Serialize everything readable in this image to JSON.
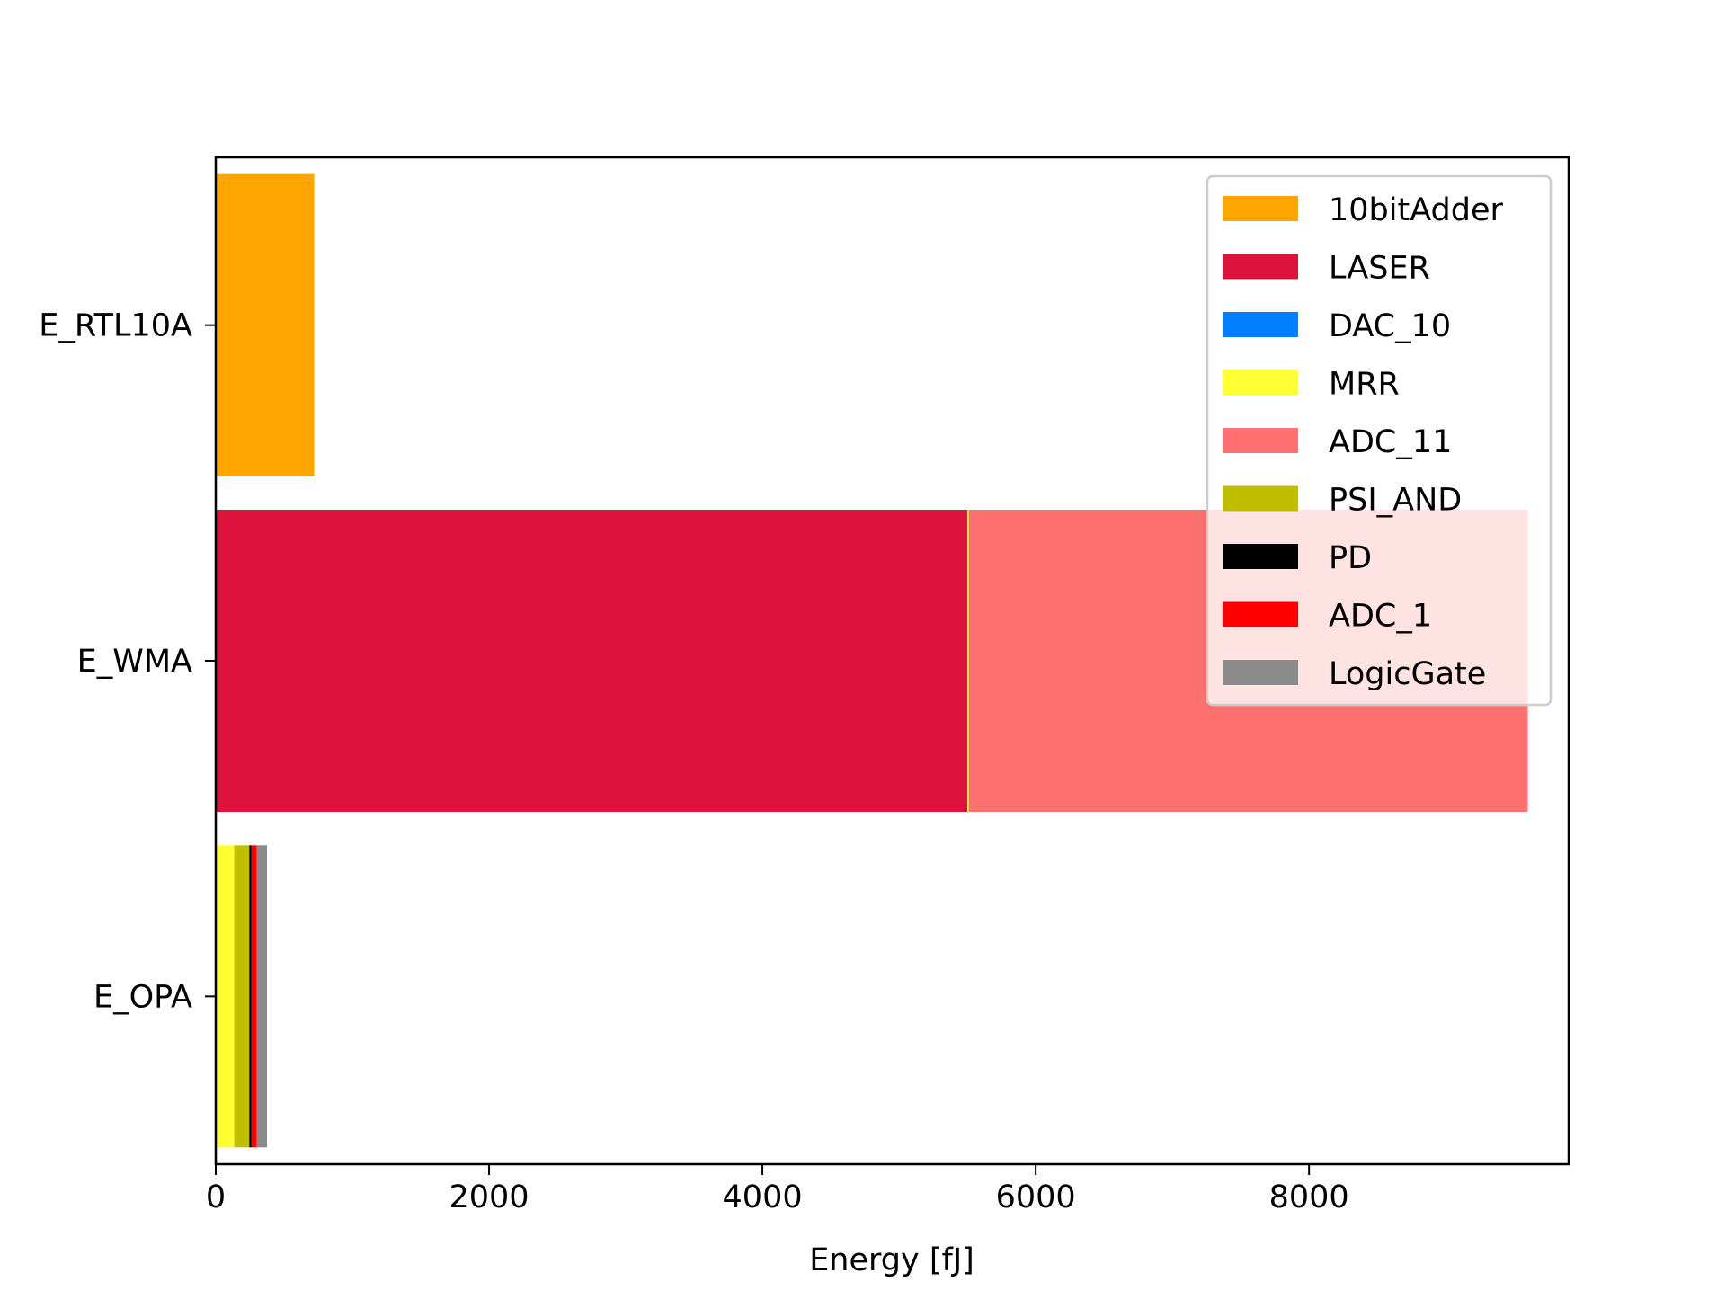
{
  "chart_data": {
    "type": "bar",
    "orientation": "horizontal",
    "stacked": true,
    "title": "",
    "xlabel": "Energy [fJ]",
    "ylabel": "",
    "xlim": [
      0,
      9900
    ],
    "xticks": [
      0,
      2000,
      4000,
      6000,
      8000
    ],
    "xtick_labels": [
      "0",
      "2000",
      "4000",
      "6000",
      "8000"
    ],
    "categories": [
      "E_RTL10A",
      "E_WMA",
      "E_OPA"
    ],
    "grid": false,
    "legend_position": "top-right",
    "series": [
      {
        "name": "10bitAdder",
        "color": "#ffa500",
        "values": [
          720,
          0,
          0
        ]
      },
      {
        "name": "LASER",
        "color": "#dc143c",
        "values": [
          0,
          5500,
          0
        ]
      },
      {
        "name": "DAC_10",
        "color": "#0080ff",
        "values": [
          0,
          0,
          0
        ]
      },
      {
        "name": "MRR",
        "color": "#ffff33",
        "values": [
          0,
          10,
          135
        ]
      },
      {
        "name": "ADC_11",
        "color": "#ff7070",
        "values": [
          0,
          4090,
          0
        ]
      },
      {
        "name": "PSI_AND",
        "color": "#bfbf00",
        "values": [
          0,
          0,
          110
        ]
      },
      {
        "name": "PD",
        "color": "#000000",
        "values": [
          0,
          0,
          15
        ]
      },
      {
        "name": "ADC_1",
        "color": "#ff0000",
        "values": [
          0,
          0,
          40
        ]
      },
      {
        "name": "LogicGate",
        "color": "#8a8a8a",
        "values": [
          0,
          0,
          75
        ]
      }
    ]
  }
}
